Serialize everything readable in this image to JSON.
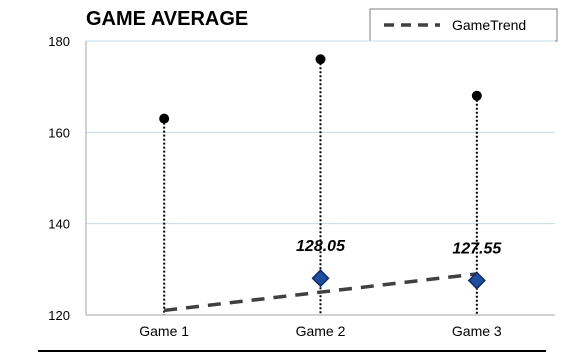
{
  "chart_data": {
    "type": "scatter",
    "title": "GAME AVERAGE",
    "xlabel": "",
    "ylabel": "",
    "categories": [
      "Game 1",
      "Game 2",
      "Game 3"
    ],
    "ylim": [
      120,
      180
    ],
    "yticks": [
      120,
      140,
      160,
      180
    ],
    "grid": true,
    "legend_position": "top-right",
    "series": [
      {
        "values": [
          163,
          176,
          168
        ],
        "marker": "circle",
        "color": "#000000",
        "drop_lines": true
      },
      {
        "values": [
          null,
          128.05,
          127.55
        ],
        "marker": "diamond",
        "color": "#1F4E9E",
        "data_labels": [
          "",
          "128.05",
          "127.55"
        ]
      },
      {
        "name": "GameTrend",
        "type": "line",
        "style": "dashed",
        "color": "#404040",
        "values": [
          121,
          125,
          129
        ]
      }
    ]
  }
}
